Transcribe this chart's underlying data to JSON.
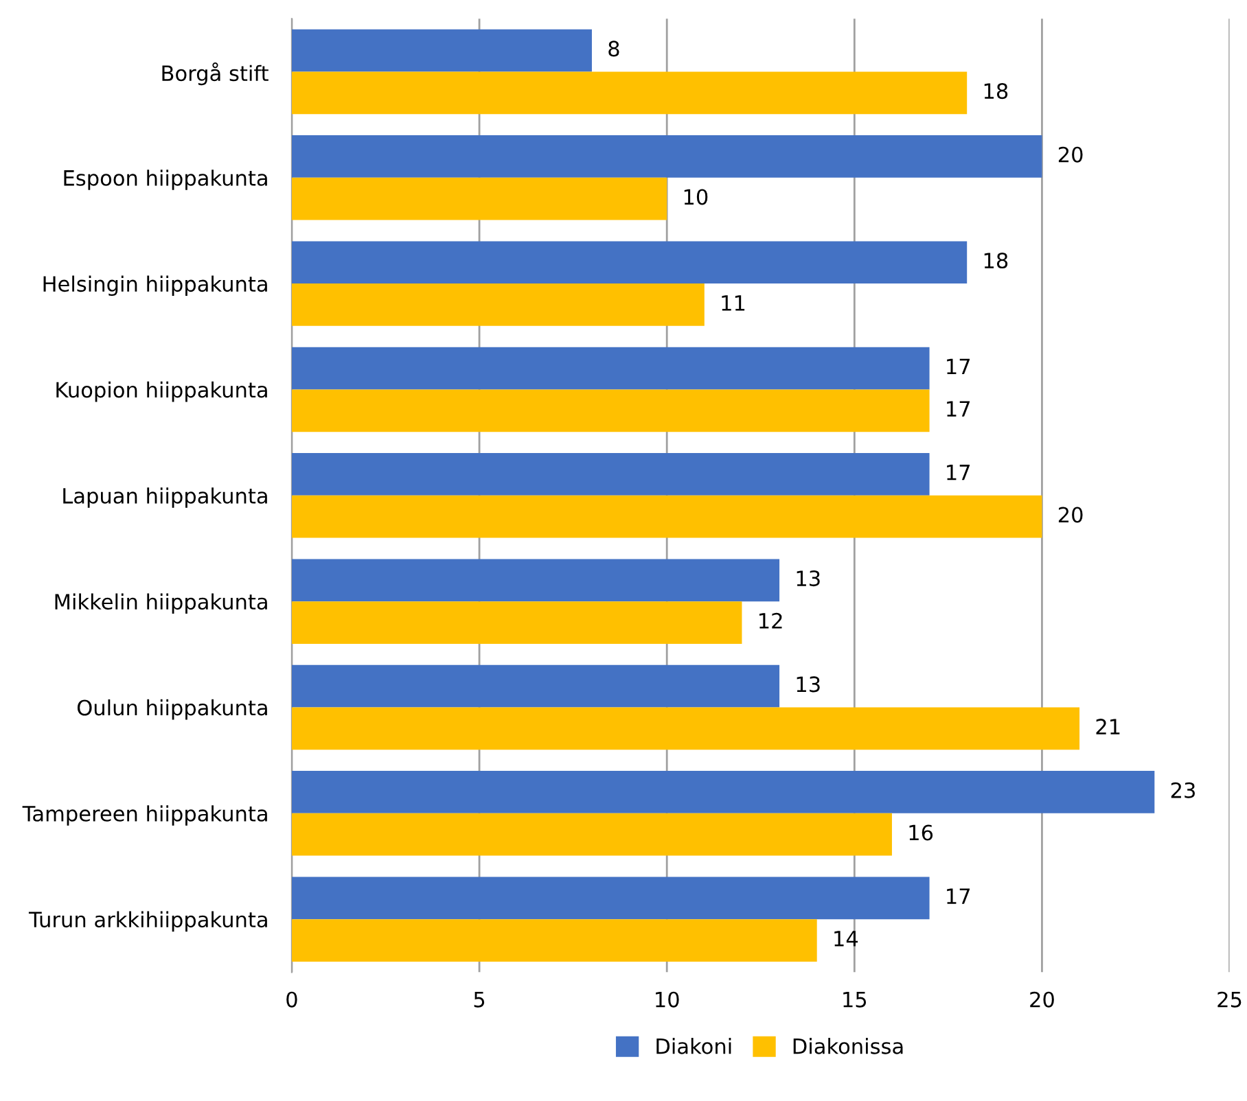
{
  "chart_data": {
    "type": "bar",
    "orientation": "horizontal",
    "categories": [
      "Borgå stift",
      "Espoon hiippakunta",
      "Helsingin hiippakunta",
      "Kuopion hiippakunta",
      "Lapuan hiippakunta",
      "Mikkelin hiippakunta",
      "Oulun hiippakunta",
      "Tampereen hiippakunta",
      "Turun arkkihiippakunta"
    ],
    "series": [
      {
        "name": "Diakoni",
        "color": "#4472c4",
        "values": [
          8,
          20,
          18,
          17,
          17,
          13,
          13,
          23,
          17
        ]
      },
      {
        "name": "Diakonissa",
        "color": "#ffc000",
        "values": [
          18,
          10,
          11,
          17,
          20,
          12,
          21,
          16,
          14
        ]
      }
    ],
    "xlim": [
      0,
      25
    ],
    "xticks": [
      0,
      5,
      10,
      15,
      20,
      25
    ],
    "grid": "x",
    "legend": "bottom",
    "data_labels": true
  }
}
